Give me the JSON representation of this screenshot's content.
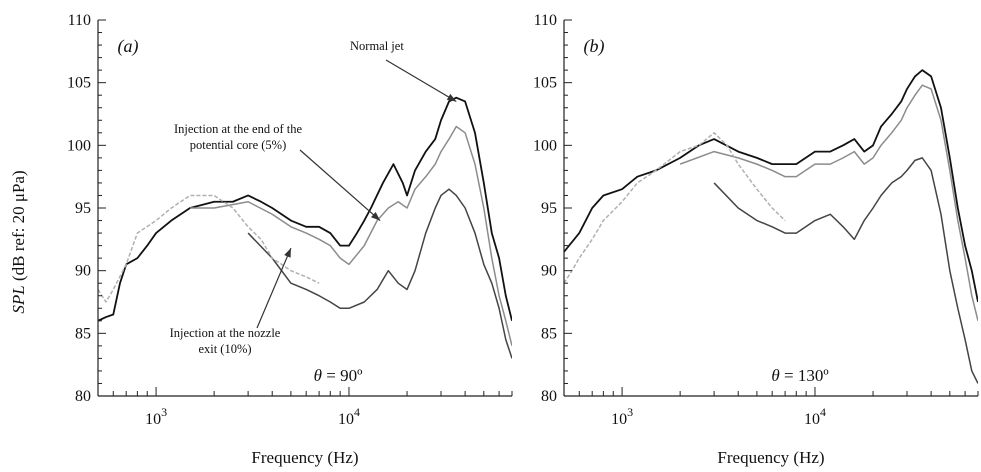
{
  "ylabel_parts": [
    "SPL",
    " (dB ref: 20 μPa)"
  ],
  "chart_data": [
    {
      "type": "line",
      "panel_label": "(a)",
      "angle_label": [
        "θ",
        " = 90º"
      ],
      "xlabel": "Frequency (Hz)",
      "xscale": "log",
      "xlim": [
        500,
        70000
      ],
      "ylim": [
        80,
        110
      ],
      "yticks": [
        80,
        85,
        90,
        95,
        100,
        105,
        110
      ],
      "xticks": [
        {
          "value": 1000,
          "base": "10",
          "exp": "3"
        },
        {
          "value": 10000,
          "base": "10",
          "exp": "4"
        }
      ],
      "grid": false,
      "annotations": [
        {
          "lines": [
            "Normal jet"
          ],
          "arrow_to": [
            36000,
            103.5
          ]
        },
        {
          "lines": [
            "Injection at the end of the",
            "potential core (5%)"
          ],
          "arrow_to": [
            14500,
            94.0
          ]
        },
        {
          "lines": [
            "Injection at the nozzle",
            "exit (10%)"
          ],
          "arrow_to": [
            5000,
            91.8
          ]
        }
      ],
      "series": [
        {
          "color": "#111111",
          "style": "solid",
          "points": [
            [
              500,
              86
            ],
            [
              550,
              86.3
            ],
            [
              600,
              86.5
            ],
            [
              650,
              89
            ],
            [
              700,
              90.5
            ],
            [
              800,
              91
            ],
            [
              900,
              92
            ],
            [
              1000,
              93
            ],
            [
              1200,
              94
            ],
            [
              1500,
              95
            ],
            [
              2000,
              95.5
            ],
            [
              2500,
              95.5
            ],
            [
              3000,
              96
            ],
            [
              3500,
              95.5
            ],
            [
              4000,
              95
            ],
            [
              5000,
              94
            ],
            [
              6000,
              93.5
            ],
            [
              7000,
              93.5
            ],
            [
              8000,
              93
            ],
            [
              9000,
              92
            ],
            [
              10000,
              92
            ],
            [
              11000,
              93
            ],
            [
              12000,
              94
            ],
            [
              13000,
              95
            ],
            [
              15000,
              97
            ],
            [
              17000,
              98.5
            ],
            [
              19000,
              97
            ],
            [
              20000,
              96
            ],
            [
              22000,
              98
            ],
            [
              25000,
              99.5
            ],
            [
              28000,
              100.5
            ],
            [
              30000,
              102
            ],
            [
              33000,
              103.5
            ],
            [
              36000,
              103.8
            ],
            [
              40000,
              103.5
            ],
            [
              45000,
              101
            ],
            [
              50000,
              97
            ],
            [
              55000,
              93
            ],
            [
              60000,
              91
            ],
            [
              65000,
              88
            ],
            [
              70000,
              86
            ]
          ]
        },
        {
          "color": "#8c8c8c",
          "style": "solid",
          "points": [
            [
              1500,
              95
            ],
            [
              2000,
              95
            ],
            [
              3000,
              95.5
            ],
            [
              4000,
              94.5
            ],
            [
              5000,
              93.5
            ],
            [
              6000,
              93
            ],
            [
              7000,
              92.5
            ],
            [
              8000,
              92
            ],
            [
              9000,
              91
            ],
            [
              10000,
              90.5
            ],
            [
              12000,
              92
            ],
            [
              14000,
              94
            ],
            [
              16000,
              95
            ],
            [
              18000,
              95.5
            ],
            [
              20000,
              95
            ],
            [
              22000,
              96.5
            ],
            [
              25000,
              97.5
            ],
            [
              28000,
              98.5
            ],
            [
              30000,
              99.5
            ],
            [
              33000,
              100.5
            ],
            [
              36000,
              101.5
            ],
            [
              40000,
              101
            ],
            [
              45000,
              98.5
            ],
            [
              50000,
              95
            ],
            [
              55000,
              91
            ],
            [
              60000,
              88
            ],
            [
              65000,
              86
            ],
            [
              70000,
              84
            ]
          ]
        },
        {
          "color": "#444444",
          "style": "solid",
          "points": [
            [
              3000,
              93
            ],
            [
              4000,
              91
            ],
            [
              5000,
              89
            ],
            [
              6000,
              88.5
            ],
            [
              7000,
              88
            ],
            [
              8000,
              87.5
            ],
            [
              9000,
              87
            ],
            [
              10000,
              87
            ],
            [
              12000,
              87.5
            ],
            [
              14000,
              88.5
            ],
            [
              16000,
              90
            ],
            [
              18000,
              89
            ],
            [
              20000,
              88.5
            ],
            [
              22000,
              90
            ],
            [
              25000,
              93
            ],
            [
              28000,
              95
            ],
            [
              30000,
              96
            ],
            [
              33000,
              96.5
            ],
            [
              36000,
              96
            ],
            [
              40000,
              95
            ],
            [
              45000,
              93
            ],
            [
              50000,
              90.5
            ],
            [
              55000,
              89
            ],
            [
              60000,
              87
            ],
            [
              65000,
              84.5
            ],
            [
              70000,
              83
            ]
          ]
        },
        {
          "color": "#b0b0b0",
          "style": "dashed",
          "points": [
            [
              500,
              88.5
            ],
            [
              550,
              87.5
            ],
            [
              600,
              88.5
            ],
            [
              700,
              90.5
            ],
            [
              800,
              93
            ],
            [
              1000,
              94
            ],
            [
              1200,
              95
            ],
            [
              1500,
              96
            ],
            [
              2000,
              96
            ],
            [
              2500,
              95
            ],
            [
              3000,
              93.5
            ],
            [
              3500,
              92.5
            ],
            [
              4000,
              91
            ],
            [
              5000,
              90
            ],
            [
              6000,
              89.5
            ],
            [
              7000,
              89
            ]
          ]
        }
      ]
    },
    {
      "type": "line",
      "panel_label": "(b)",
      "angle_label": [
        "θ",
        " = 130º"
      ],
      "xlabel": "Frequency (Hz)",
      "xscale": "log",
      "xlim": [
        500,
        70000
      ],
      "ylim": [
        80,
        110
      ],
      "yticks": [
        80,
        85,
        90,
        95,
        100,
        105,
        110
      ],
      "xticks": [
        {
          "value": 1000,
          "base": "10",
          "exp": "3"
        },
        {
          "value": 10000,
          "base": "10",
          "exp": "4"
        }
      ],
      "grid": false,
      "annotations": [],
      "series": [
        {
          "color": "#111111",
          "style": "solid",
          "points": [
            [
              500,
              91.5
            ],
            [
              600,
              93
            ],
            [
              700,
              95
            ],
            [
              800,
              96
            ],
            [
              1000,
              96.5
            ],
            [
              1200,
              97.5
            ],
            [
              1500,
              98
            ],
            [
              2000,
              99
            ],
            [
              2500,
              100
            ],
            [
              3000,
              100.5
            ],
            [
              4000,
              99.5
            ],
            [
              5000,
              99
            ],
            [
              6000,
              98.5
            ],
            [
              7000,
              98.5
            ],
            [
              8000,
              98.5
            ],
            [
              10000,
              99.5
            ],
            [
              12000,
              99.5
            ],
            [
              14000,
              100
            ],
            [
              16000,
              100.5
            ],
            [
              18000,
              99.5
            ],
            [
              20000,
              100
            ],
            [
              22000,
              101.5
            ],
            [
              25000,
              102.5
            ],
            [
              28000,
              103.5
            ],
            [
              30000,
              104.5
            ],
            [
              33000,
              105.5
            ],
            [
              36000,
              106
            ],
            [
              40000,
              105.5
            ],
            [
              45000,
              103
            ],
            [
              50000,
              99
            ],
            [
              55000,
              95
            ],
            [
              60000,
              92
            ],
            [
              65000,
              90
            ],
            [
              70000,
              87.5
            ]
          ]
        },
        {
          "color": "#8c8c8c",
          "style": "solid",
          "points": [
            [
              2000,
              98.5
            ],
            [
              3000,
              99.5
            ],
            [
              4000,
              99
            ],
            [
              5000,
              98.5
            ],
            [
              6000,
              98
            ],
            [
              7000,
              97.5
            ],
            [
              8000,
              97.5
            ],
            [
              10000,
              98.5
            ],
            [
              12000,
              98.5
            ],
            [
              14000,
              99
            ],
            [
              16000,
              99.5
            ],
            [
              18000,
              98.5
            ],
            [
              20000,
              99
            ],
            [
              22000,
              100
            ],
            [
              25000,
              101
            ],
            [
              28000,
              102
            ],
            [
              30000,
              103
            ],
            [
              33000,
              104
            ],
            [
              36000,
              104.8
            ],
            [
              40000,
              104.5
            ],
            [
              45000,
              102
            ],
            [
              50000,
              98
            ],
            [
              55000,
              94
            ],
            [
              60000,
              91
            ],
            [
              65000,
              88
            ],
            [
              70000,
              86
            ]
          ]
        },
        {
          "color": "#444444",
          "style": "solid",
          "points": [
            [
              3000,
              97
            ],
            [
              4000,
              95
            ],
            [
              5000,
              94
            ],
            [
              6000,
              93.5
            ],
            [
              7000,
              93
            ],
            [
              8000,
              93
            ],
            [
              10000,
              94
            ],
            [
              12000,
              94.5
            ],
            [
              14000,
              93.5
            ],
            [
              16000,
              92.5
            ],
            [
              18000,
              94
            ],
            [
              20000,
              95
            ],
            [
              22000,
              96
            ],
            [
              25000,
              97
            ],
            [
              28000,
              97.5
            ],
            [
              30000,
              98
            ],
            [
              33000,
              98.8
            ],
            [
              36000,
              99
            ],
            [
              40000,
              98
            ],
            [
              45000,
              94.5
            ],
            [
              50000,
              90
            ],
            [
              55000,
              87
            ],
            [
              60000,
              84.5
            ],
            [
              65000,
              82
            ],
            [
              70000,
              81
            ]
          ]
        },
        {
          "color": "#b0b0b0",
          "style": "dashed",
          "points": [
            [
              500,
              89
            ],
            [
              550,
              90
            ],
            [
              600,
              91
            ],
            [
              700,
              92.5
            ],
            [
              800,
              94
            ],
            [
              1000,
              95.5
            ],
            [
              1200,
              97
            ],
            [
              1500,
              98
            ],
            [
              2000,
              99.5
            ],
            [
              2500,
              100
            ],
            [
              3000,
              101
            ],
            [
              3500,
              100
            ],
            [
              4000,
              98.5
            ],
            [
              5000,
              96.5
            ],
            [
              6000,
              95
            ],
            [
              7000,
              94
            ]
          ]
        }
      ]
    }
  ]
}
